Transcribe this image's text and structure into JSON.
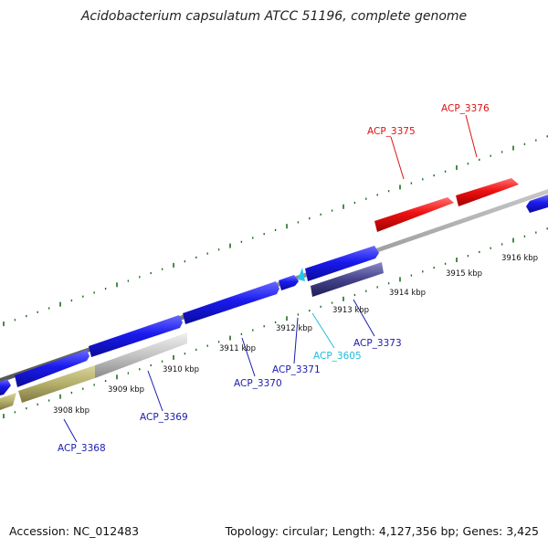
{
  "title": "Acidobacterium capsulatum ATCC 51196, complete genome",
  "accession": "Accession: NC_012483",
  "summary": "Topology: circular; Length: 4,127,356 bp; Genes: 3,425",
  "colors": {
    "forward_gene": "#1010e6",
    "reverse_highlight": "#ee1111",
    "ruler_tick": "#1e6e1e",
    "backbone": "#888888",
    "label_blue": "#1a1ab0",
    "label_red": "#dd1111",
    "label_cyan": "#22bbdd"
  },
  "kbp_ticks": [
    "3908 kbp",
    "3909 kbp",
    "3910 kbp",
    "3911 kbp",
    "3912 kbp",
    "3913 kbp",
    "3914 kbp",
    "3915 kbp",
    "3916 kbp"
  ],
  "gene_labels": {
    "acp3368": "ACP_3368",
    "acp3369": "ACP_3369",
    "acp3370": "ACP_3370",
    "acp3371": "ACP_3371",
    "acp3605": "ACP_3605",
    "acp3373": "ACP_3373",
    "acp3375": "ACP_3375",
    "acp3376": "ACP_3376"
  }
}
